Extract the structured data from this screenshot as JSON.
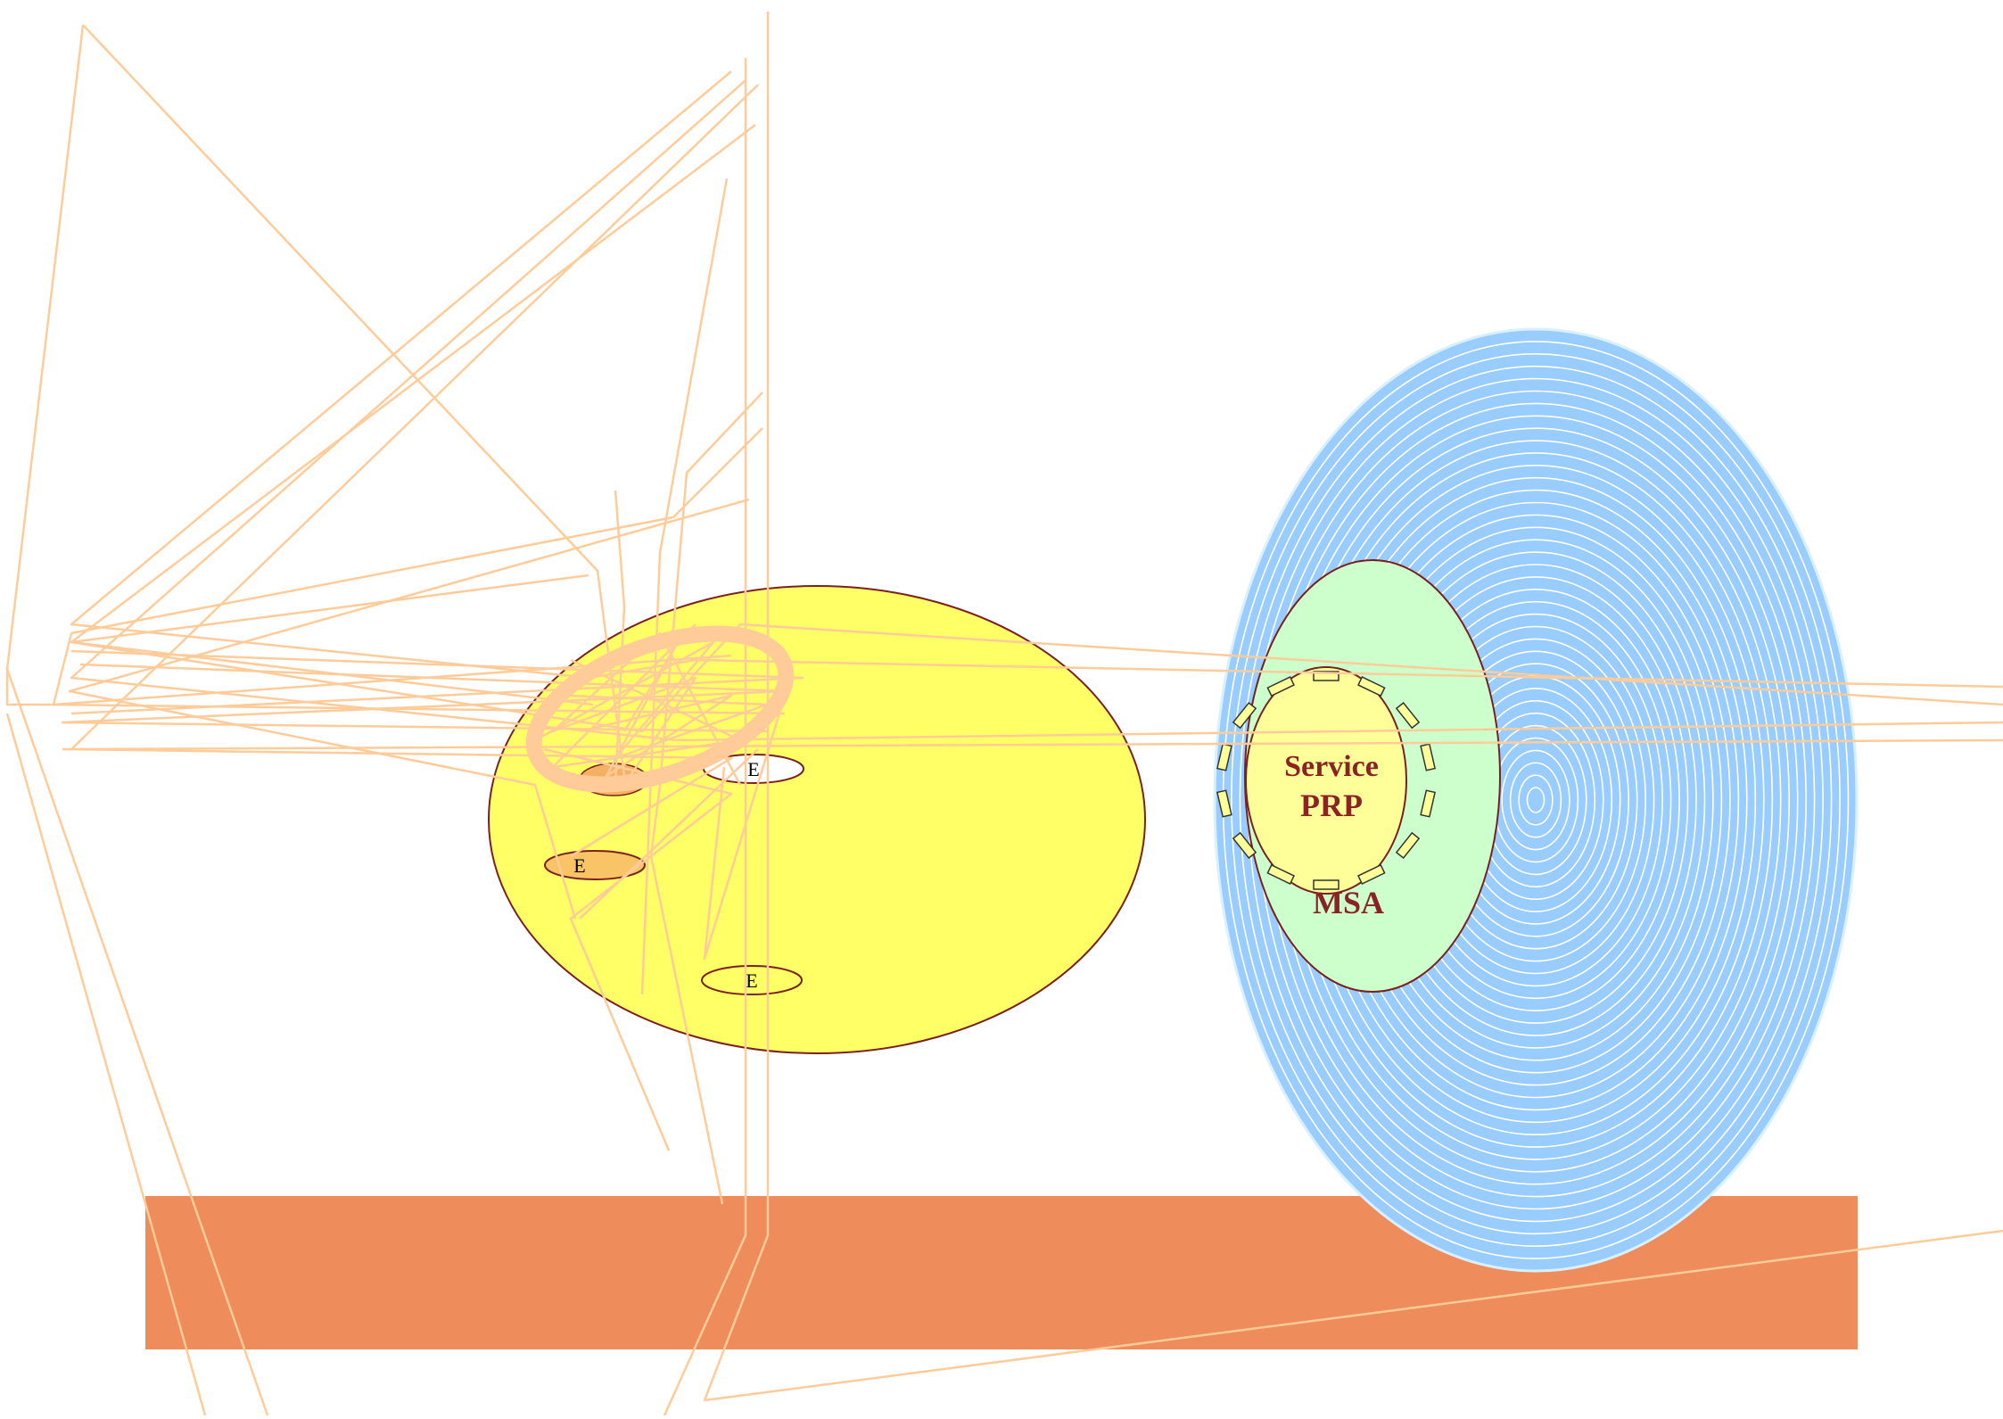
{
  "diagram": {
    "labels": {
      "e_white_top": "E",
      "e_orange": "E",
      "e_bottom": "E",
      "service": "Service",
      "prp": "PRP",
      "msa": "MSA"
    },
    "colors": {
      "background": "#ffffff",
      "base_bar": "#ef8c5c",
      "yellow_fill": "#ffff66",
      "outline_dark_red": "#7a2020",
      "blue_fill": "#99ccff",
      "blue_rings": "#ffffff",
      "green_fill": "#ccffcc",
      "inner_yellow": "#ffff99",
      "text_dark_red": "#8b2323",
      "scribble": "#ffcc99",
      "orange_ellipse": "#f9c466"
    }
  }
}
